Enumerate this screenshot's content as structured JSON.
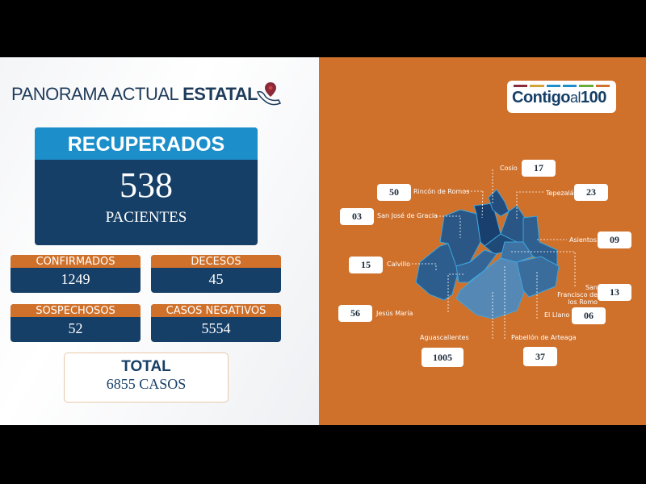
{
  "header": {
    "title_light": "PANORAMA ACTUAL",
    "title_bold": "ESTATAL",
    "icon": "mexico-map-pin-icon"
  },
  "recuperados": {
    "label": "RECUPERADOS",
    "value": "538",
    "unit": "PACIENTES"
  },
  "stats": [
    {
      "label": "CONFIRMADOS",
      "value": "1249"
    },
    {
      "label": "DECESOS",
      "value": "45"
    },
    {
      "label": "SOSPECHOSOS",
      "value": "52"
    },
    {
      "label": "CASOS NEGATIVOS",
      "value": "5554"
    }
  ],
  "total": {
    "label": "TOTAL",
    "value": "6855 CASOS"
  },
  "logo": {
    "text": "Contigo",
    "small": "al",
    "number": "100",
    "bar_colors": [
      "#8a2a3a",
      "#d4a23a",
      "#1c8fcb",
      "#1c8fcb",
      "#6aaa3a",
      "#d0712b"
    ]
  },
  "colors": {
    "orange": "#d0712b",
    "navy": "#163f67",
    "blue": "#1c8fcb"
  },
  "municipios": [
    {
      "name": "Cosío",
      "value": "17"
    },
    {
      "name": "Rincón de Romos",
      "value": "50"
    },
    {
      "name": "Tepezalá",
      "value": "23"
    },
    {
      "name": "San José de Gracia",
      "value": "03"
    },
    {
      "name": "Asientos",
      "value": "09"
    },
    {
      "name": "Calvillo",
      "value": "15"
    },
    {
      "name": "San Francisco de los Romo",
      "value": "13"
    },
    {
      "name": "Jesús María",
      "value": "56"
    },
    {
      "name": "El Llano",
      "value": "06"
    },
    {
      "name": "Aguascalientes",
      "value": "1005"
    },
    {
      "name": "Pabellón de Arteaga",
      "value": "37"
    }
  ]
}
